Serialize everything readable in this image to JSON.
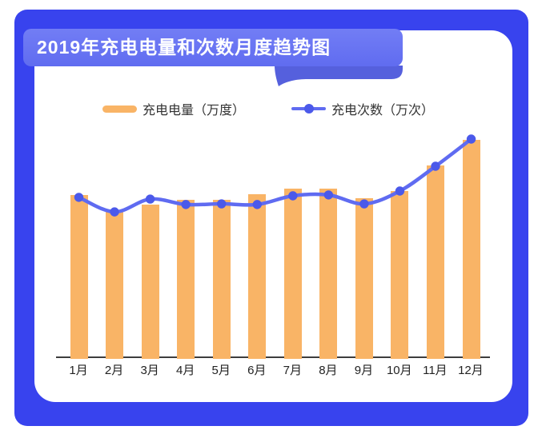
{
  "title": {
    "text": "2019年充电电量和次数月度趋势图"
  },
  "colors": {
    "frame_blue": "#3843ee",
    "banner_blue": "#6874f3",
    "banner_shadow_blue": "#5560dd",
    "bar_orange": "#f9b466",
    "line_blue": "#5f6bf1",
    "dot_blue": "#4b59ea",
    "axis_gray": "#3d3d3d",
    "label_dark": "#222222"
  },
  "chart_data": {
    "type": "bar-line-combo",
    "title": "2019年充电电量和次数月度趋势图",
    "categories": [
      "1月",
      "2月",
      "3月",
      "4月",
      "5月",
      "6月",
      "7月",
      "8月",
      "9月",
      "10月",
      "11月",
      "12月"
    ],
    "series": [
      {
        "name": "充电电量（万度）",
        "kind": "bar",
        "color": "#f9b466",
        "values": [
          74.5,
          66.8,
          70.1,
          72.3,
          72.3,
          74.9,
          77.5,
          77.5,
          73.1,
          76.4,
          88.2,
          100
        ]
      },
      {
        "name": "充电次数（万次）",
        "kind": "line",
        "color": "#5f6bf1",
        "values": [
          73.2,
          66.5,
          72.4,
          69.9,
          70.2,
          69.9,
          73.9,
          74.3,
          70.2,
          76.1,
          87.5,
          100
        ]
      }
    ],
    "xlabel": "",
    "ylabel": "",
    "ylim": [
      0,
      100
    ],
    "y_axis_visible": false,
    "grid": false,
    "legend_position": "top",
    "value_scale_note": "relative 0-100 scale; chart displays no numeric y-axis"
  }
}
